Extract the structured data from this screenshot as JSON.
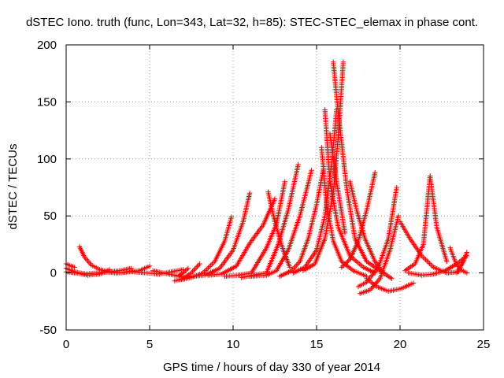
{
  "chart_data": {
    "type": "scatter",
    "title": "dSTEC Iono. truth (func, Lon=343, Lat=32, h=85): STEC-STEC_elemax in phase cont.",
    "xlabel": "GPS time / hours of day 330 of year 2014",
    "ylabel": "dSTEC  / TECUs",
    "xlim": [
      0,
      25
    ],
    "ylim": [
      -50,
      200
    ],
    "x_ticks": [
      "0",
      "5",
      "10",
      "15",
      "20",
      "25"
    ],
    "y_ticks": [
      "-50",
      "0",
      "50",
      "100",
      "150",
      "200"
    ],
    "grid": true,
    "legend": "none",
    "marker": "plus",
    "color": "#ff0000",
    "arcs": [
      {
        "x": [
          0.0,
          0.5,
          1.2,
          1.8,
          2.6,
          3.2,
          3.9
        ],
        "y": [
          4,
          1,
          -1,
          0,
          1,
          2,
          4
        ]
      },
      {
        "x": [
          0.0,
          0.6,
          1.3,
          2.0,
          2.6
        ],
        "y": [
          1,
          0,
          -2,
          -1,
          3
        ]
      },
      {
        "x": [
          0.8,
          1.1,
          1.5,
          2.0,
          2.6,
          3.3,
          4.0
        ],
        "y": [
          23,
          14,
          7,
          3,
          1,
          0,
          2
        ]
      },
      {
        "x": [
          0.0,
          0.3,
          0.5
        ],
        "y": [
          8,
          6,
          5
        ]
      },
      {
        "x": [
          2.2,
          3.0,
          3.8,
          4.4,
          5.0
        ],
        "y": [
          1,
          0,
          1,
          2,
          6
        ]
      },
      {
        "x": [
          4.0,
          4.8,
          5.6,
          6.3,
          7.0
        ],
        "y": [
          1,
          0,
          -1,
          1,
          3
        ]
      },
      {
        "x": [
          5.2,
          5.8,
          6.5,
          7.1,
          7.6
        ],
        "y": [
          2,
          0,
          -2,
          -4,
          -3
        ]
      },
      {
        "x": [
          6.7,
          7.0,
          7.3
        ],
        "y": [
          -3,
          0,
          4
        ]
      },
      {
        "x": [
          6.5,
          7.0,
          7.5,
          8.0
        ],
        "y": [
          -7,
          -5,
          0,
          8
        ]
      },
      {
        "x": [
          6.8,
          7.5,
          8.2,
          8.9,
          9.5,
          9.9
        ],
        "y": [
          -6,
          -4,
          0,
          10,
          28,
          49
        ]
      },
      {
        "x": [
          7.5,
          8.3,
          9.2,
          10.0,
          10.6,
          11.0
        ],
        "y": [
          -3,
          -2,
          4,
          20,
          45,
          70
        ]
      },
      {
        "x": [
          8.5,
          9.3,
          10.2,
          11.0,
          11.8,
          12.5
        ],
        "y": [
          -2,
          -1,
          6,
          26,
          42,
          65
        ]
      },
      {
        "x": [
          9.5,
          10.3,
          11.1,
          12.0,
          12.6,
          13.1
        ],
        "y": [
          -3,
          -2,
          0,
          22,
          43,
          80
        ]
      },
      {
        "x": [
          10.5,
          11.2,
          12.0,
          12.7,
          13.3,
          13.9
        ],
        "y": [
          -4,
          -2,
          0,
          25,
          55,
          95
        ]
      },
      {
        "x": [
          11.0,
          12.0,
          12.6,
          13.3,
          14.0,
          14.7
        ],
        "y": [
          -3,
          -2,
          2,
          20,
          50,
          90
        ]
      },
      {
        "x": [
          12.1,
          12.5,
          13.0,
          13.4
        ],
        "y": [
          71,
          45,
          20,
          5
        ]
      },
      {
        "x": [
          12.8,
          13.5,
          14.0,
          14.5,
          15.0,
          15.4
        ],
        "y": [
          -3,
          2,
          10,
          30,
          60,
          90
        ]
      },
      {
        "x": [
          13.6,
          14.3,
          15.0,
          15.5,
          15.9,
          16.2
        ],
        "y": [
          0,
          5,
          20,
          50,
          95,
          143
        ]
      },
      {
        "x": [
          14.2,
          14.9,
          15.5,
          16.0,
          16.3,
          16.6
        ],
        "y": [
          2,
          8,
          30,
          70,
          120,
          185
        ]
      },
      {
        "x": [
          15.3,
          15.6,
          16.0,
          16.5,
          17.2,
          18.0
        ],
        "y": [
          110,
          60,
          28,
          10,
          2,
          -3
        ]
      },
      {
        "x": [
          15.5,
          15.8,
          16.3,
          17.0,
          17.8,
          18.5
        ],
        "y": [
          143,
          80,
          40,
          15,
          5,
          0
        ]
      },
      {
        "x": [
          16.0,
          16.3,
          16.8,
          17.3,
          18.0,
          19.0
        ],
        "y": [
          185,
          140,
          75,
          30,
          10,
          0
        ]
      },
      {
        "x": [
          15.8,
          16.2,
          16.7
        ],
        "y": [
          122,
          80,
          35
        ]
      },
      {
        "x": [
          16.5,
          17.0,
          17.5,
          18.0,
          18.5
        ],
        "y": [
          5,
          12,
          28,
          55,
          88
        ]
      },
      {
        "x": [
          17.0,
          17.4,
          17.9,
          18.5,
          19.0,
          19.5
        ],
        "y": [
          80,
          55,
          30,
          10,
          0,
          -5
        ]
      },
      {
        "x": [
          17.5,
          18.0,
          18.7,
          19.3,
          19.8
        ],
        "y": [
          -12,
          -8,
          5,
          30,
          75
        ]
      },
      {
        "x": [
          17.6,
          18.2,
          18.8,
          19.4,
          19.9
        ],
        "y": [
          -18,
          -15,
          -5,
          20,
          50
        ]
      },
      {
        "x": [
          18.0,
          18.6,
          19.3,
          20.0,
          20.8
        ],
        "y": [
          -5,
          -12,
          -16,
          -14,
          -9
        ]
      },
      {
        "x": [
          20.0,
          20.6,
          21.3,
          22.0,
          22.8,
          23.5
        ],
        "y": [
          45,
          30,
          15,
          5,
          0,
          1
        ]
      },
      {
        "x": [
          20.3,
          20.9,
          21.4,
          21.8,
          22.2,
          22.8
        ],
        "y": [
          2,
          8,
          25,
          85,
          40,
          10
        ]
      },
      {
        "x": [
          20.5,
          21.3,
          22.0,
          22.7,
          23.4,
          24.0
        ],
        "y": [
          0,
          -2,
          -1,
          2,
          8,
          15
        ]
      },
      {
        "x": [
          23.0,
          23.3,
          23.6,
          24.0
        ],
        "y": [
          22,
          10,
          3,
          0
        ]
      },
      {
        "x": [
          23.4,
          23.8,
          24.0
        ],
        "y": [
          0,
          10,
          18
        ]
      }
    ]
  }
}
